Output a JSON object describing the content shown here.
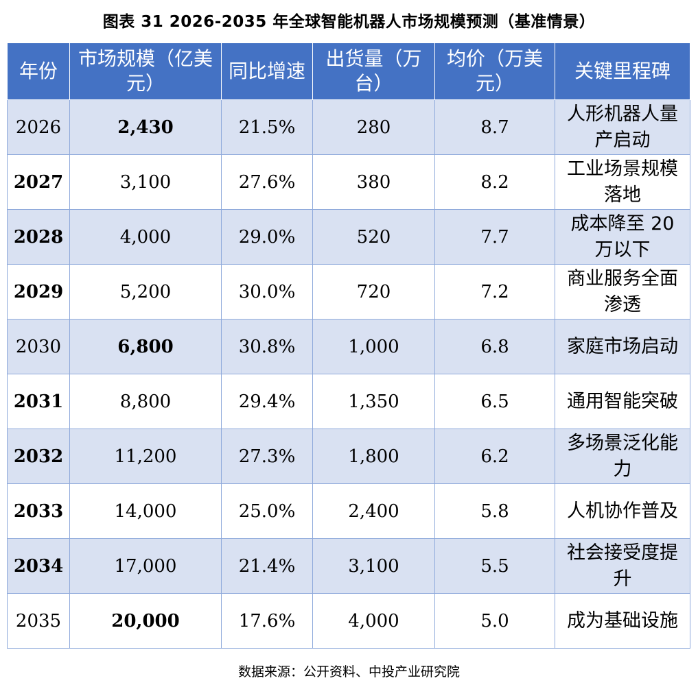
{
  "title": "图表 31   2026-2035 年全球智能机器人市场规模预测（基准情景）",
  "headers": [
    "年份",
    "市场规模（亿美元）",
    "同比增速",
    "出货量（万台）",
    "均价（万美元）",
    "关键里程碑"
  ],
  "rows": [
    {
      "year": "2026",
      "market": "2,430",
      "growth": "21.5%",
      "shipments": "280",
      "price": "8.7",
      "milestone": "人形机器人量产启动"
    },
    {
      "year": "2027",
      "market": "3,100",
      "growth": "27.6%",
      "shipments": "380",
      "price": "8.2",
      "milestone": "工业场景规模落地"
    },
    {
      "year": "2028",
      "market": "4,000",
      "growth": "29.0%",
      "shipments": "520",
      "price": "7.7",
      "milestone": "成本降至 20 万以下"
    },
    {
      "year": "2029",
      "market": "5,200",
      "growth": "30.0%",
      "shipments": "720",
      "price": "7.2",
      "milestone": "商业服务全面渗透"
    },
    {
      "year": "2030",
      "market": "6,800",
      "growth": "30.8%",
      "shipments": "1,000",
      "price": "6.8",
      "milestone": "家庭市场启动"
    },
    {
      "year": "2031",
      "market": "8,800",
      "growth": "29.4%",
      "shipments": "1,350",
      "price": "6.5",
      "milestone": "通用智能突破"
    },
    {
      "year": "2032",
      "market": "11,200",
      "growth": "27.3%",
      "shipments": "1,800",
      "price": "6.2",
      "milestone": "多场景泛化能力"
    },
    {
      "year": "2033",
      "market": "14,000",
      "growth": "25.0%",
      "shipments": "2,400",
      "price": "5.8",
      "milestone": "人机协作普及"
    },
    {
      "year": "2034",
      "market": "17,000",
      "growth": "21.4%",
      "shipments": "3,100",
      "price": "5.5",
      "milestone": "社会接受度提升"
    },
    {
      "year": "2035",
      "market": "20,000",
      "growth": "17.6%",
      "shipments": "4,000",
      "price": "5.0",
      "milestone": "成为基础设施"
    }
  ],
  "source": "数据来源：公开资料、中投产业研究院",
  "colors": {
    "header_bg": "#4472c4",
    "shaded_row": "#d9e1f2",
    "border": "#8ea9db"
  }
}
